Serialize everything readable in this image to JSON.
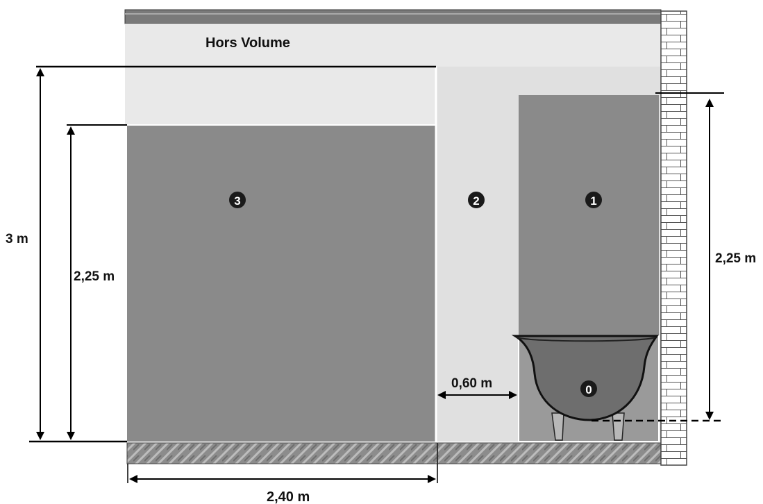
{
  "diagram": {
    "labels": {
      "hors_volume": "Hors Volume",
      "height_total": "3 m",
      "height_zone3": "2,25 m",
      "height_zone1": "2,25 m",
      "width_zone2": "0,60 m",
      "width_zone3": "2,40 m"
    },
    "zones": {
      "zone0": "0",
      "zone1": "1",
      "zone2": "2",
      "zone3": "3"
    },
    "colors": {
      "zone_dark": "#8a8a8a",
      "zone_light": "#e6e6e6",
      "hors_volume": "#e9e9e9",
      "tub": "#6e6e6e",
      "badge": "#1a1a1a",
      "brick": "#ffffff",
      "floor": "#8c8c8c"
    }
  }
}
